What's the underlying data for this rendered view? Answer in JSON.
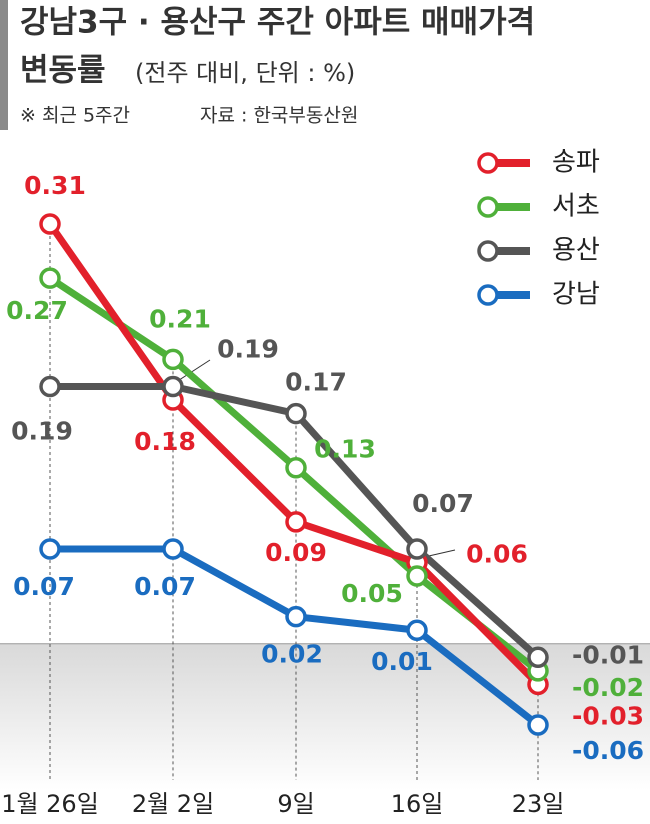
{
  "chart_data": {
    "type": "line",
    "title": "강남3구 · 용산구 주간 아파트 매매가격",
    "title_line2": "변동률",
    "subtitle": "(전주 대비, 단위 : %)",
    "note": "※ 최근 5주간",
    "source": "자료 : 한국부동산원",
    "categories": [
      "1월 26일",
      "2월 2일",
      "9일",
      "16일",
      "23일"
    ],
    "series": [
      {
        "name": "송파",
        "color": "#e2202b",
        "values": [
          0.31,
          0.18,
          0.09,
          0.06,
          -0.03
        ]
      },
      {
        "name": "서초",
        "color": "#4fb03a",
        "values": [
          0.27,
          0.21,
          0.13,
          0.05,
          -0.02
        ]
      },
      {
        "name": "용산",
        "color": "#555555",
        "values": [
          0.19,
          0.19,
          0.17,
          0.07,
          -0.01
        ]
      },
      {
        "name": "강남",
        "color": "#1a6cc0",
        "values": [
          0.07,
          0.07,
          0.02,
          0.01,
          -0.06
        ]
      }
    ]
  }
}
